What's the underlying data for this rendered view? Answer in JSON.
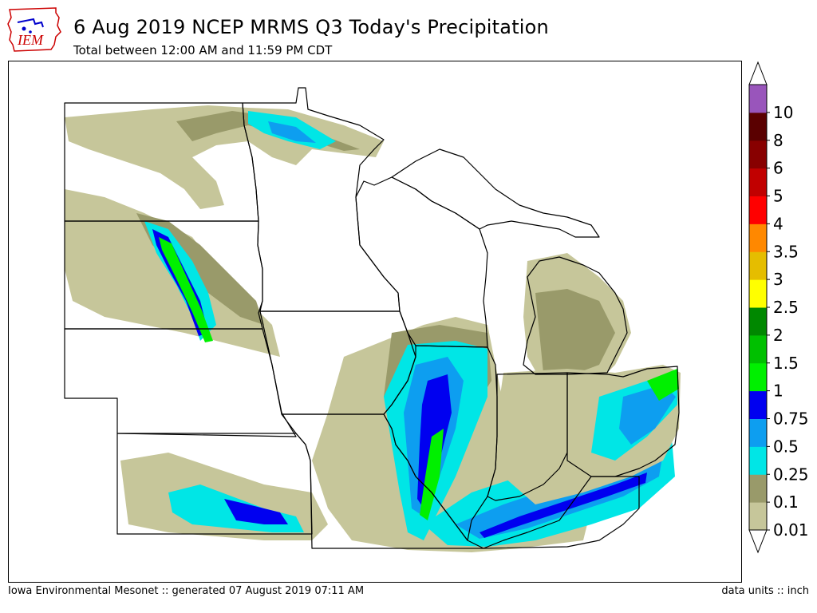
{
  "logo": {
    "text": "IEM",
    "icon": "iowa-state-outline-icon"
  },
  "title": "6 Aug 2019 NCEP MRMS Q3 Today's Precipitation",
  "subtitle": "Total between 12:00 AM and 11:59 PM CDT",
  "footer": {
    "left": "Iowa Environmental Mesonet :: generated 07 August 2019 07:11 AM",
    "right": "data units :: inch"
  },
  "legend": {
    "levels": [
      {
        "label": "0.01",
        "color": "#c6c69a"
      },
      {
        "label": "0.1",
        "color": "#999a6a"
      },
      {
        "label": "0.25",
        "color": "#00e6e6"
      },
      {
        "label": "0.5",
        "color": "#0d9ef0"
      },
      {
        "label": "0.75",
        "color": "#0000f0"
      },
      {
        "label": "1",
        "color": "#00f000"
      },
      {
        "label": "1.5",
        "color": "#00c000"
      },
      {
        "label": "2",
        "color": "#008800"
      },
      {
        "label": "2.5",
        "color": "#ffff00"
      },
      {
        "label": "3",
        "color": "#e5bd00"
      },
      {
        "label": "3.5",
        "color": "#ff8800"
      },
      {
        "label": "4",
        "color": "#ff0000"
      },
      {
        "label": "5",
        "color": "#c10000"
      },
      {
        "label": "6",
        "color": "#880000"
      },
      {
        "label": "8",
        "color": "#5a0000"
      }
    ],
    "top_label": "10",
    "top_color": "#9955bb"
  },
  "map": {
    "background": "#ffffff",
    "border_color": "#000000"
  }
}
